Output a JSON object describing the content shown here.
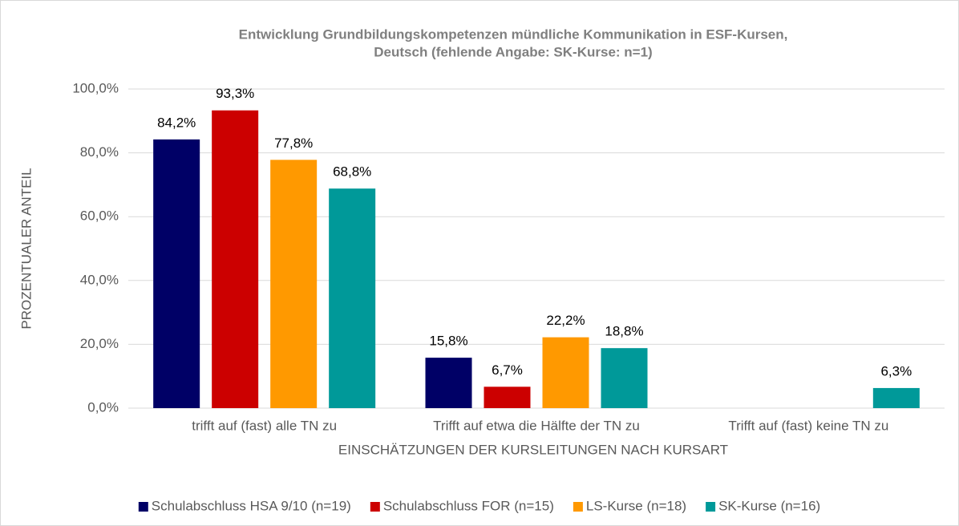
{
  "chart_data": {
    "type": "bar",
    "title": [
      "Entwicklung Grundbildungskompetenzen mündliche Kommunikation in ESF-Kursen,",
      "Deutsch (fehlende Angabe: SK-Kurse: n=1)"
    ],
    "y_label": "PROZENTUALER ANTEIL",
    "x_label": "EINSCHÄTZUNGEN DER KURSLEITUNGEN NACH KURSART",
    "categories": [
      "trifft auf (fast) alle TN zu",
      "Trifft auf etwa die Hälfte der TN zu",
      "Trifft auf (fast) keine TN zu"
    ],
    "series": [
      {
        "name": "Schulabschluss HSA 9/10 (n=19)",
        "color": "#000066",
        "values": [
          84.2,
          15.8,
          null
        ],
        "value_labels": [
          "84,2%",
          "15,8%",
          null
        ]
      },
      {
        "name": "Schulabschluss FOR (n=15)",
        "color": "#cc0000",
        "values": [
          93.3,
          6.7,
          null
        ],
        "value_labels": [
          "93,3%",
          "6,7%",
          null
        ]
      },
      {
        "name": "LS-Kurse (n=18)",
        "color": "#ff9900",
        "values": [
          77.8,
          22.2,
          null
        ],
        "value_labels": [
          "77,8%",
          "22,2%",
          null
        ]
      },
      {
        "name": "SK-Kurse (n=16)",
        "color": "#009999",
        "values": [
          68.8,
          18.8,
          6.3
        ],
        "value_labels": [
          "68,8%",
          "18,8%",
          "6,3%"
        ]
      }
    ],
    "ylim": [
      0,
      100
    ],
    "yticks": [
      {
        "value": 0,
        "label": "0,0%"
      },
      {
        "value": 20,
        "label": "20,0%"
      },
      {
        "value": 40,
        "label": "40,0%"
      },
      {
        "value": 60,
        "label": "60,0%"
      },
      {
        "value": 80,
        "label": "80,0%"
      },
      {
        "value": 100,
        "label": "100,0%"
      }
    ],
    "grid": true,
    "legend": "bottom"
  }
}
